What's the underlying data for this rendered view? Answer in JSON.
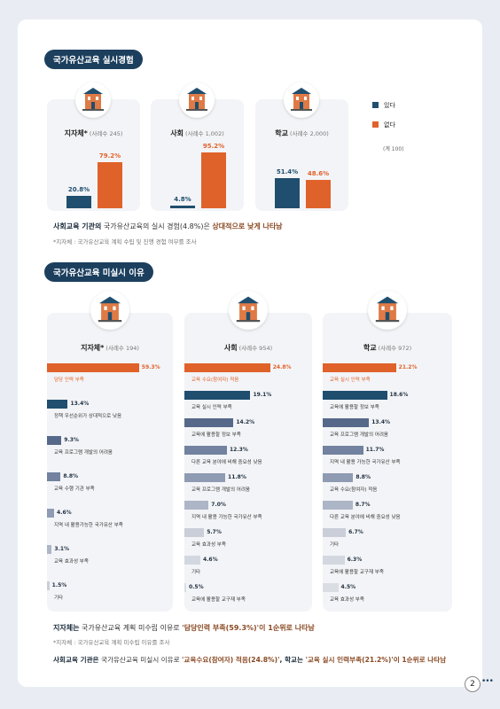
{
  "section1": {
    "title": "국가유산교육 실시경험",
    "legend": [
      {
        "name": "있다",
        "color": "#1f4e6e"
      },
      {
        "name": "없다",
        "color": "#e0622b"
      }
    ],
    "total_note": "(계 100)",
    "panels": [
      {
        "name": "지자체*",
        "sample": "(사례수 245)",
        "values": [
          20.8,
          79.2
        ],
        "value_labels": [
          "20.8%",
          "79.2%"
        ]
      },
      {
        "name": "사회",
        "sample": "(사례수 1,002)",
        "values": [
          4.8,
          95.2
        ],
        "value_labels": [
          "4.8%",
          "95.2%"
        ]
      },
      {
        "name": "학교",
        "sample": "(사례수 2,000)",
        "values": [
          51.4,
          48.6
        ],
        "value_labels": [
          "51.4%",
          "48.6%"
        ]
      }
    ],
    "statement": [
      {
        "text": "사회교육 기관의",
        "style": "bold"
      },
      {
        "text": " 국가유산교육의 실시 경험(4.8%)은 ",
        "style": "normal"
      },
      {
        "text": "상대적으로 낮게 나타남",
        "style": "accent"
      }
    ],
    "note": "*지자체 : 국가유산교육 계획 수립 및 진행 경험 여부를 조사"
  },
  "section2": {
    "title": "국가유산교육 미실시 이유",
    "colors": [
      "#e0622b",
      "#1f4e6e",
      "#56698a",
      "#7282a0",
      "#8f9bb3",
      "#adb6c6",
      "#c9ced8",
      "#d3d7df",
      "#dadde3"
    ],
    "panels": [
      {
        "name": "지자체*",
        "sample": "(사례수 194)",
        "labels": [
          "담당 인력 부족",
          "정책 우선순위가 상대적으로 낮음",
          "교육 프로그램 개발의 어려움",
          "교육 수행 기관 부족",
          "지역 내 활용가능한 국가유산 부족",
          "교육 효과성 부족",
          "기타"
        ],
        "values": [
          59.3,
          13.4,
          9.3,
          8.8,
          4.6,
          3.1,
          1.5
        ],
        "value_labels": [
          "59.3%",
          "13.4%",
          "9.3%",
          "8.8%",
          "4.6%",
          "3.1%",
          "1.5%"
        ]
      },
      {
        "name": "사회",
        "sample": "(사례수 954)",
        "labels": [
          "교육 수요(참여자) 적음",
          "교육 실시 인력 부족",
          "교육에 활용할 정보 부족",
          "다른 교육 분야에 비해 중요성 낮음",
          "교육 프로그램 개발의 어려움",
          "지역 내 활용 가능한 국가유산 부족",
          "교육 효과성 부족",
          "기타",
          "교육에 활용할 교구재 부족"
        ],
        "values": [
          24.8,
          19.1,
          14.2,
          12.3,
          11.8,
          7.0,
          5.7,
          4.6,
          0.5
        ],
        "value_labels": [
          "24.8%",
          "19.1%",
          "14.2%",
          "12.3%",
          "11.8%",
          "7.0%",
          "5.7%",
          "4.6%",
          "0.5%"
        ]
      },
      {
        "name": "학교",
        "sample": "(사례수 972)",
        "labels": [
          "교육 실시 인력 부족",
          "교육에 활용할 정보 부족",
          "교육 프로그램 개발의 어려움",
          "지역 내 활용 가능한 국가유산 부족",
          "교육 수요(참여자) 적음",
          "다른 교육 분야에 비해 중요성 낮음",
          "기타",
          "교육에 활용할 교구재 부족",
          "교육 효과성 부족"
        ],
        "values": [
          21.2,
          18.6,
          13.4,
          11.7,
          8.8,
          8.7,
          6.7,
          6.3,
          4.5
        ],
        "value_labels": [
          "21.2%",
          "18.6%",
          "13.4%",
          "11.7%",
          "8.8%",
          "8.7%",
          "6.7%",
          "6.3%",
          "4.5%"
        ]
      }
    ],
    "statements": [
      [
        {
          "text": "지자체는",
          "style": "bold"
        },
        {
          "text": " 국가유산교육 계획 미수립 이유로 ",
          "style": "normal"
        },
        {
          "text": "'담당인력 부족(59.3%)'이 1순위로 나타남",
          "style": "accent"
        }
      ],
      [
        {
          "text": "사회교육 기관은",
          "style": "bold"
        },
        {
          "text": " 국가유산교육 미실시 이유로 ",
          "style": "normal"
        },
        {
          "text": "'교육수요(참여자) 적음(24.8%)'",
          "style": "accent"
        },
        {
          "text": ", 학교는",
          "style": "bold"
        },
        {
          "text": " '교육 실시 인력부족(21.2%)'이 1순위로 나타남",
          "style": "accent"
        }
      ]
    ],
    "note": "*지자체 : 국가유산교육 계획 미수립 이유를 조사"
  },
  "page_number": "2"
}
